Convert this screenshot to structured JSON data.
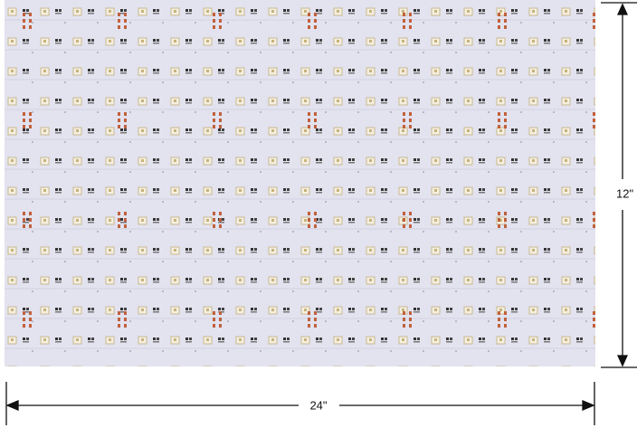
{
  "annotations": {
    "height": "12\"",
    "width": "24\""
  }
}
